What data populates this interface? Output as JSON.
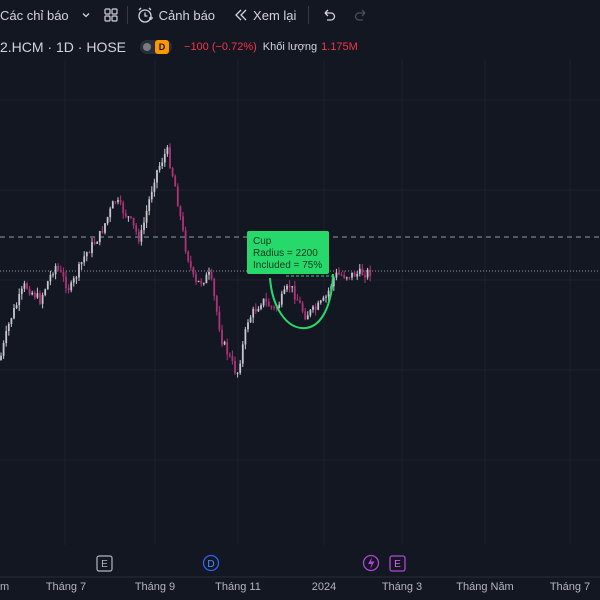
{
  "toolbar": {
    "indicators_label": "Các chỉ báo",
    "alerts_label": "Cảnh báo",
    "replay_label": "Xem lại",
    "icons": [
      "chevron-down-icon",
      "layout-grid-icon",
      "alarm-clock-icon",
      "replay-icon",
      "undo-icon",
      "redo-icon"
    ]
  },
  "legend": {
    "symbol": "2.HCM · 1D · HOSE",
    "badge": "D",
    "change": "−100 (−0.72%)",
    "volume_label": "Khối lượng",
    "volume_value": "1.175M",
    "change_color": "#f23645",
    "volume_color": "#f23645"
  },
  "annotation": {
    "title": "Cup",
    "radius": "Radius = 2200",
    "included": "Included = 75%",
    "color": "#26d96a"
  },
  "events": [
    "E",
    "D",
    "E"
  ],
  "xaxis_labels": [
    "m",
    "Tháng 7",
    "Tháng 9",
    "Tháng 11",
    "2024",
    "Tháng 3",
    "Tháng Năm",
    "Tháng 7"
  ],
  "colors": {
    "up": "#c7c7cf",
    "down": "#b0337a",
    "background": "#131722",
    "grid": "#1e222d"
  }
}
